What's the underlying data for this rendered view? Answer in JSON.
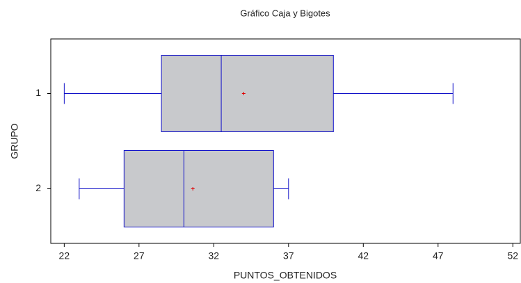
{
  "chart_data": {
    "type": "box",
    "title": "Gráfico Caja y Bigotes",
    "x_label": "PUNTOS_OBTENIDOS",
    "y_label": "GRUPO",
    "categories": [
      "1",
      "2"
    ],
    "min": [
      22,
      23
    ],
    "q1": [
      28.5,
      26
    ],
    "median": [
      32.5,
      30
    ],
    "q3": [
      40,
      36
    ],
    "max": [
      48,
      37
    ],
    "mean": [
      34,
      30.6
    ],
    "box_color": "#c8c9cc",
    "line_color": "#1010c8",
    "mean_color": "#e00000",
    "xlim": [
      21.1,
      52.5
    ],
    "xticks": [
      22,
      27,
      32,
      37,
      42,
      47,
      52
    ]
  }
}
